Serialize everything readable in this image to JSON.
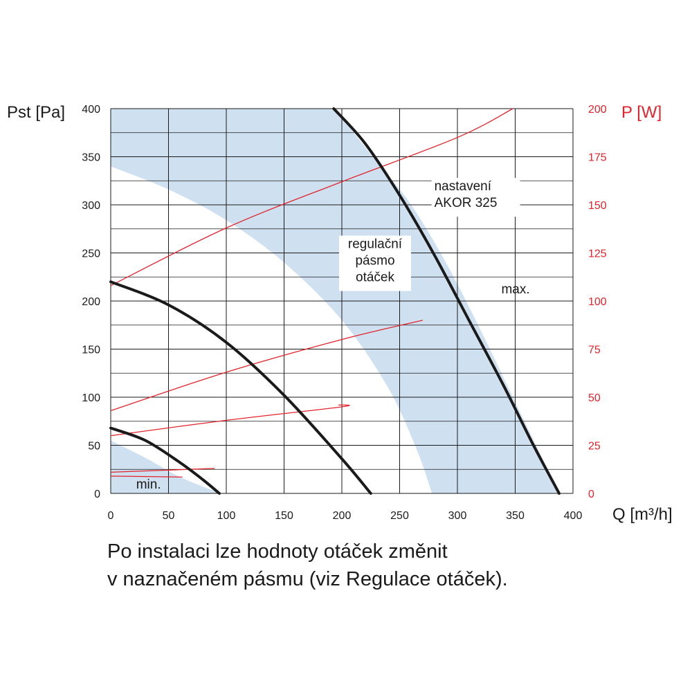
{
  "chart_data": {
    "type": "line",
    "x_axis": {
      "label": "Q [m³/h]",
      "min": 0,
      "max": 400,
      "ticks": [
        0,
        50,
        100,
        150,
        200,
        250,
        300,
        350,
        400
      ]
    },
    "y_axis_left": {
      "label": "Pst [Pa]",
      "min": 0,
      "max": 400,
      "ticks": [
        0,
        50,
        100,
        150,
        200,
        250,
        300,
        350,
        400
      ]
    },
    "y_axis_right": {
      "label": "P [W]",
      "min": 0,
      "max": 200,
      "ticks": [
        0,
        25,
        50,
        75,
        100,
        125,
        150,
        175,
        200
      ],
      "color": "#e3232b"
    },
    "grid": true,
    "colors": {
      "pressure_curve": "#1a1a1a",
      "power_curve": "#e3232b",
      "band": "#cfe0f0",
      "grid": "#1a1a1a"
    },
    "speed_band": {
      "upper": [
        [
          0,
          400
        ],
        [
          194,
          400
        ],
        [
          230,
          345
        ],
        [
          260,
          300
        ],
        [
          290,
          240
        ],
        [
          320,
          170
        ],
        [
          350,
          95
        ],
        [
          388,
          0
        ]
      ],
      "lower": [
        [
          0,
          340
        ],
        [
          50,
          316
        ],
        [
          100,
          284
        ],
        [
          150,
          240
        ],
        [
          200,
          180
        ],
        [
          240,
          110
        ],
        [
          265,
          45
        ],
        [
          278,
          0
        ],
        [
          95,
          0
        ],
        [
          60,
          17
        ],
        [
          30,
          37
        ],
        [
          0,
          55
        ]
      ]
    },
    "pressure_series": [
      {
        "name": "max.",
        "points": [
          [
            193,
            400
          ],
          [
            220,
            364
          ],
          [
            250,
            310
          ],
          [
            280,
            248
          ],
          [
            310,
            180
          ],
          [
            340,
            112
          ],
          [
            365,
            52
          ],
          [
            388,
            0
          ]
        ]
      },
      {
        "name": "",
        "points": [
          [
            0,
            220
          ],
          [
            50,
            196
          ],
          [
            100,
            157
          ],
          [
            150,
            102
          ],
          [
            200,
            36
          ],
          [
            225,
            0
          ]
        ]
      },
      {
        "name": "min.",
        "points": [
          [
            0,
            68
          ],
          [
            30,
            55
          ],
          [
            60,
            32
          ],
          [
            80,
            14
          ],
          [
            94,
            0
          ]
        ]
      }
    ],
    "power_series": [
      {
        "name": "",
        "points": [
          [
            0,
            108
          ],
          [
            100,
            138
          ],
          [
            200,
            162
          ],
          [
            300,
            185
          ],
          [
            348,
            200
          ]
        ]
      },
      {
        "name": "",
        "points": [
          [
            0,
            43
          ],
          [
            100,
            63
          ],
          [
            200,
            80
          ],
          [
            270,
            90
          ]
        ]
      },
      {
        "name": "",
        "points": [
          [
            0,
            30
          ],
          [
            100,
            38
          ],
          [
            200,
            45
          ],
          [
            197,
            46
          ]
        ]
      },
      {
        "name": "",
        "points": [
          [
            0,
            11
          ],
          [
            90,
            13
          ]
        ]
      },
      {
        "name": "",
        "points": [
          [
            0,
            9
          ],
          [
            62,
            8.5
          ]
        ]
      }
    ],
    "annotations": [
      {
        "id": "nastaveni",
        "lines": [
          "nastavení",
          "AKOR 325"
        ],
        "x": 280,
        "y": 315
      },
      {
        "id": "regulacni",
        "lines": [
          "regulační",
          "pásmo",
          "otáček"
        ],
        "x": 200,
        "y": 255
      },
      {
        "id": "max",
        "lines": [
          "max."
        ],
        "x": 338,
        "y": 208
      },
      {
        "id": "min",
        "lines": [
          "min."
        ],
        "x": 22,
        "y": 5
      }
    ]
  },
  "caption": {
    "line1": "Po instalaci lze hodnoty otáček změnit",
    "line2": "v naznačeném pásmu (viz Regulace otáček)."
  }
}
